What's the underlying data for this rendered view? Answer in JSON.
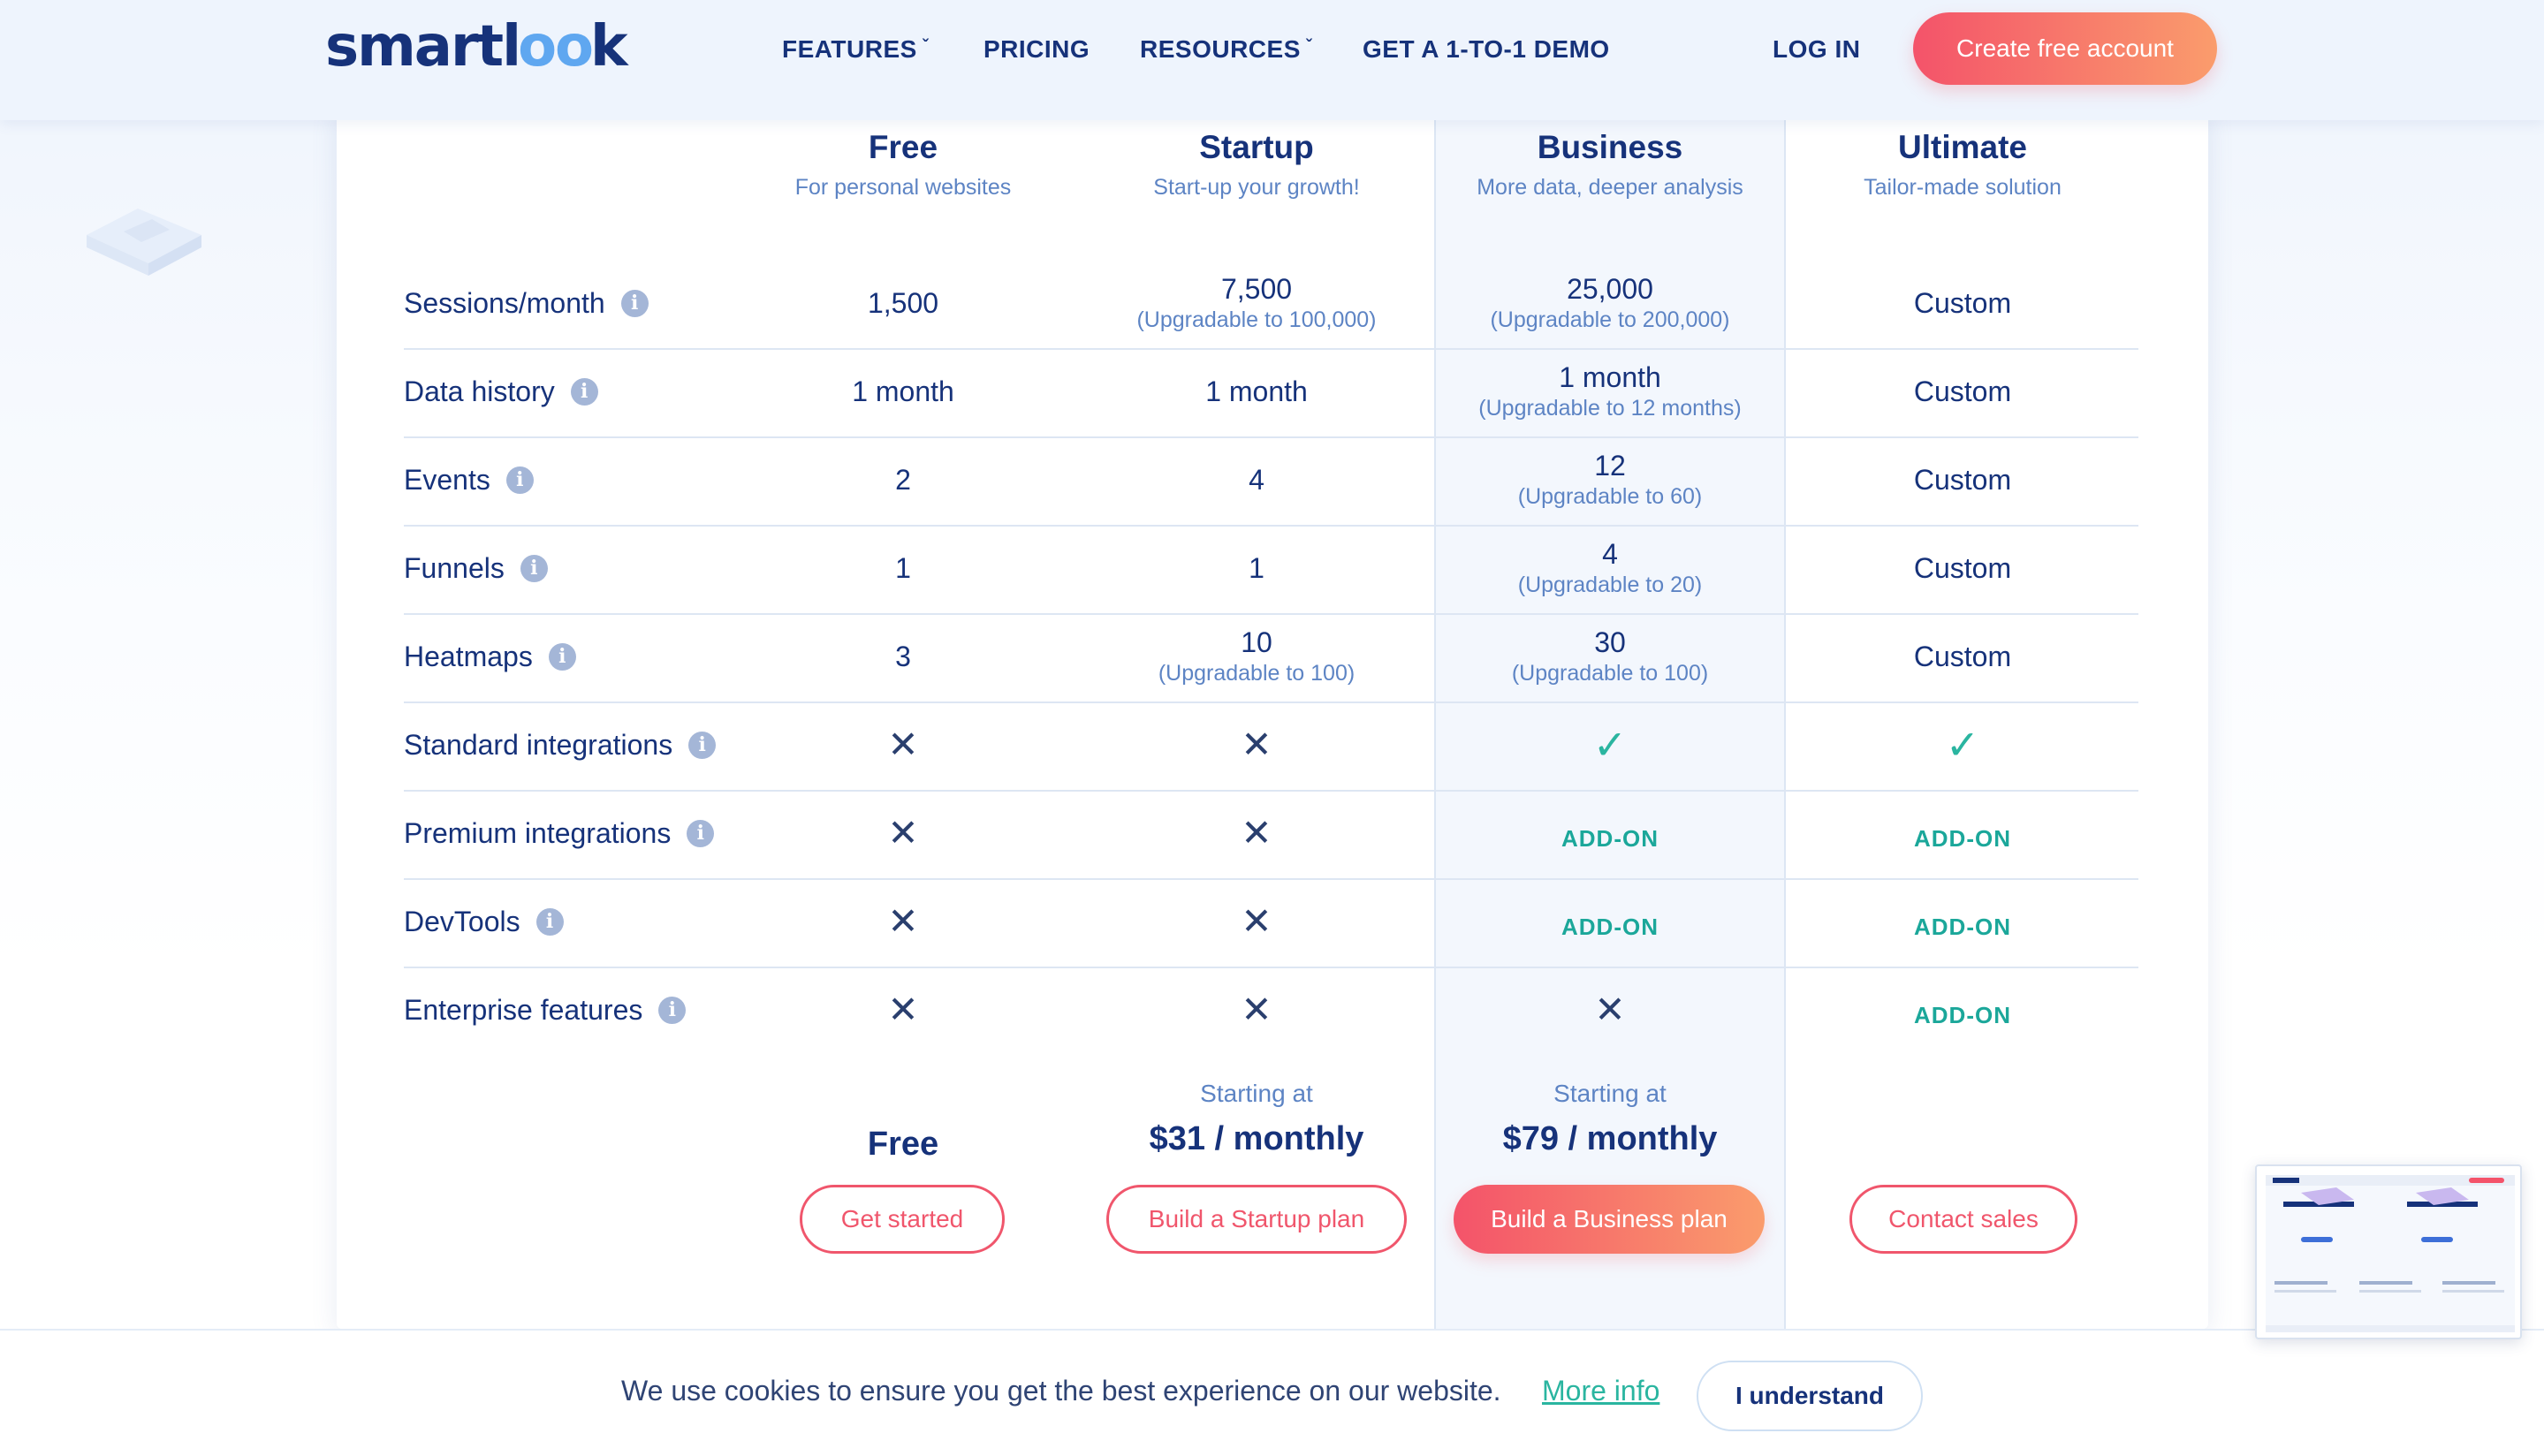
{
  "header": {
    "logo": {
      "pre": "smartl",
      "loop": "oo",
      "post": "k"
    },
    "nav": [
      {
        "label": "FEATURES",
        "caret": "ˇ"
      },
      {
        "label": "PRICING"
      },
      {
        "label": "RESOURCES",
        "caret": "ˇ"
      },
      {
        "label": "GET A 1-TO-1 DEMO"
      }
    ],
    "login": "LOG IN",
    "cta": "Create free account"
  },
  "plans": [
    {
      "name": "Free",
      "subtitle": "For personal websites"
    },
    {
      "name": "Startup",
      "subtitle": "Start-up your growth!"
    },
    {
      "name": "Business",
      "subtitle": "More data, deeper analysis"
    },
    {
      "name": "Ultimate",
      "subtitle": "Tailor-made solution"
    }
  ],
  "rows": [
    {
      "label": "Sessions/month",
      "cells": [
        {
          "value": "1,500"
        },
        {
          "value": "7,500",
          "sub": "(Upgradable to 100,000)"
        },
        {
          "value": "25,000",
          "sub": "(Upgradable to 200,000)"
        },
        {
          "value": "Custom"
        }
      ]
    },
    {
      "label": "Data history",
      "cells": [
        {
          "value": "1 month"
        },
        {
          "value": "1 month"
        },
        {
          "value": "1 month",
          "sub": "(Upgradable to 12 months)"
        },
        {
          "value": "Custom"
        }
      ]
    },
    {
      "label": "Events",
      "cells": [
        {
          "value": "2"
        },
        {
          "value": "4"
        },
        {
          "value": "12",
          "sub": "(Upgradable to 60)"
        },
        {
          "value": "Custom"
        }
      ]
    },
    {
      "label": "Funnels",
      "cells": [
        {
          "value": "1"
        },
        {
          "value": "1"
        },
        {
          "value": "4",
          "sub": "(Upgradable to 20)"
        },
        {
          "value": "Custom"
        }
      ]
    },
    {
      "label": "Heatmaps",
      "cells": [
        {
          "value": "3"
        },
        {
          "value": "10",
          "sub": "(Upgradable to 100)"
        },
        {
          "value": "30",
          "sub": "(Upgradable to 100)"
        },
        {
          "value": "Custom"
        }
      ]
    },
    {
      "label": "Standard integrations",
      "cells": [
        {
          "icon": "x"
        },
        {
          "icon": "x"
        },
        {
          "icon": "check"
        },
        {
          "icon": "check"
        }
      ]
    },
    {
      "label": "Premium integrations",
      "cells": [
        {
          "icon": "x"
        },
        {
          "icon": "x"
        },
        {
          "addon": "ADD-ON"
        },
        {
          "addon": "ADD-ON"
        }
      ]
    },
    {
      "label": "DevTools",
      "cells": [
        {
          "icon": "x"
        },
        {
          "icon": "x"
        },
        {
          "addon": "ADD-ON"
        },
        {
          "addon": "ADD-ON"
        }
      ]
    },
    {
      "label": "Enterprise features",
      "cells": [
        {
          "icon": "x"
        },
        {
          "icon": "x"
        },
        {
          "icon": "x"
        },
        {
          "addon": "ADD-ON"
        }
      ]
    }
  ],
  "glyphs": {
    "x": "✕",
    "check": "✓",
    "info": "i"
  },
  "pricing": [
    {
      "starting": "",
      "price": "Free",
      "button": "Get started"
    },
    {
      "starting": "Starting at",
      "price": "$31 / monthly",
      "button": "Build a Startup plan"
    },
    {
      "starting": "Starting at",
      "price": "$79 / monthly",
      "button": "Build a Business plan"
    },
    {
      "starting": "",
      "price": "",
      "button": "Contact sales"
    }
  ],
  "cookie": {
    "text": "We use cookies to ensure you get the best experience on our website.",
    "link": "More info",
    "button": "I understand"
  },
  "colors": {
    "brand": "#16327a",
    "accent_start": "#f4536a",
    "accent_end": "#fa9c6c",
    "teal": "#2ab5a0"
  }
}
